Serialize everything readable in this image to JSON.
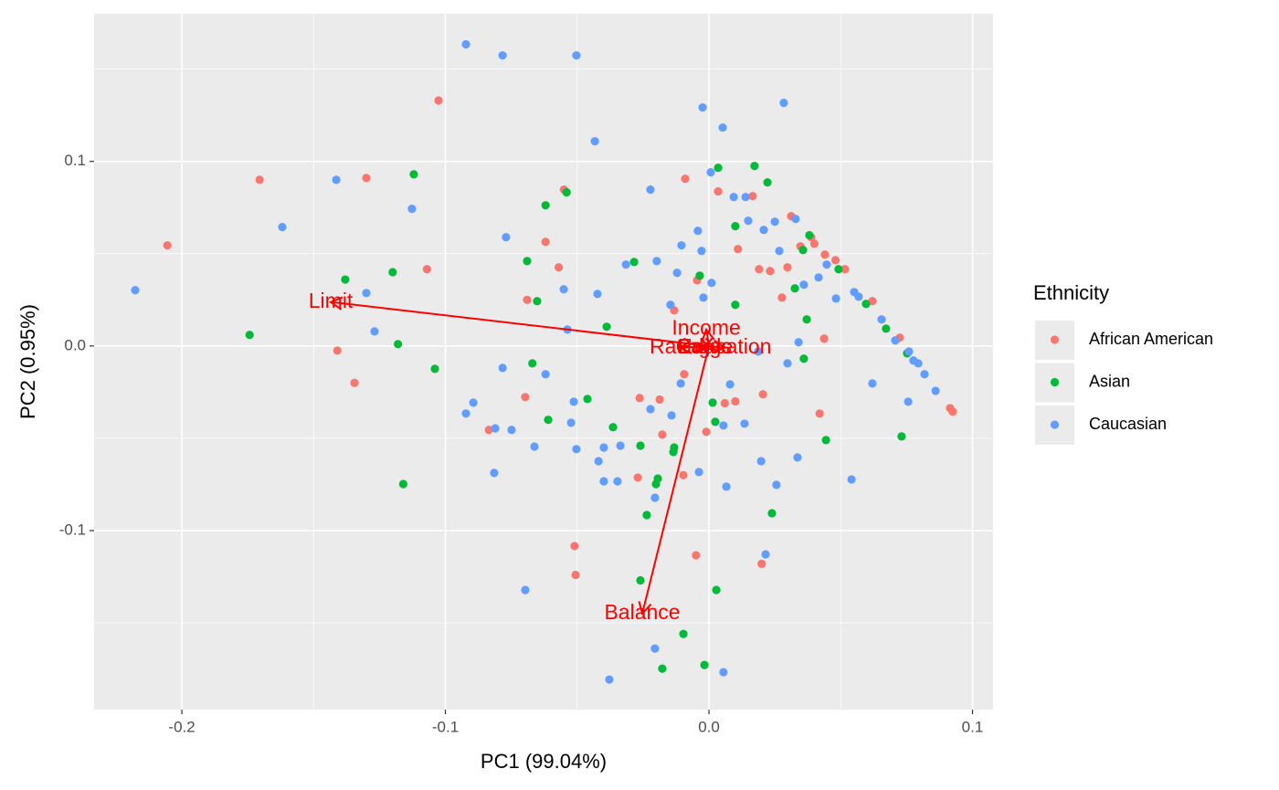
{
  "chart_data": {
    "type": "scatter",
    "x_label": "PC1 (99.04%)",
    "y_label": "PC2 (0.95%)",
    "legend_title": "Ethnicity",
    "xlim": [
      -0.2333,
      0.1078
    ],
    "ylim": [
      -0.197,
      0.18
    ],
    "xticks": [
      -0.2,
      -0.1,
      {
        "value": 0,
        "label": "0.0"
      },
      0.1
    ],
    "yticks": [
      -0.1,
      {
        "value": 0,
        "label": "0.0"
      },
      0.1
    ],
    "xminor": [
      -0.15,
      -0.05,
      0.05
    ],
    "yminor": [
      -0.15,
      -0.05,
      0.05,
      0.15
    ],
    "grid": true,
    "legend": "right",
    "series": [
      {
        "name": "African American",
        "color": "#F8766D",
        "x": [
          -0.2055,
          -0.1705,
          -0.13,
          -0.107,
          -0.1026,
          -0.141,
          -0.1345,
          -0.0835,
          -0.055,
          -0.062,
          -0.057,
          -0.069,
          -0.0697,
          -0.051,
          -0.0506,
          -0.0263,
          -0.009,
          0.0035,
          0.0166,
          0.011,
          0.019,
          0.0232,
          0.0298,
          0.0312,
          0.0347,
          0.0388,
          0.04,
          0.044,
          0.0277,
          0.0437,
          0.042,
          0.0205,
          0.01,
          0.006,
          -0.001,
          -0.0049,
          0.02,
          -0.0097,
          -0.0177,
          -0.027,
          -0.0187,
          -0.0094,
          -0.0132,
          -0.0045,
          0.0915,
          0.0925,
          0.048,
          0.0516,
          0.062,
          0.0724
        ],
        "values": [
          0.0545,
          0.09,
          0.091,
          0.0416,
          0.133,
          -0.0025,
          -0.02,
          -0.0455,
          0.0847,
          0.0564,
          0.0426,
          0.025,
          -0.0277,
          -0.1084,
          -0.124,
          -0.0282,
          0.0906,
          0.0837,
          0.0812,
          0.0525,
          0.0416,
          0.0406,
          0.0426,
          0.0703,
          0.054,
          0.0589,
          0.0554,
          0.0495,
          0.0262,
          0.004,
          -0.0366,
          -0.0262,
          -0.03,
          -0.031,
          -0.0465,
          -0.1134,
          -0.118,
          -0.07,
          -0.048,
          -0.0713,
          -0.029,
          -0.0153,
          0.0193,
          0.0356,
          -0.0337,
          -0.0356,
          0.0465,
          0.0416,
          0.0243,
          0.0045
        ]
      },
      {
        "name": "Asian",
        "color": "#00BA38",
        "x": [
          -0.1743,
          -0.138,
          -0.12,
          -0.112,
          -0.118,
          -0.104,
          -0.116,
          -0.069,
          -0.0652,
          -0.062,
          -0.054,
          -0.067,
          -0.061,
          -0.0461,
          -0.0284,
          -0.0388,
          -0.0364,
          -0.026,
          -0.026,
          -0.0236,
          -0.0194,
          -0.0135,
          -0.0097,
          -0.0177,
          -0.0017,
          0.0028,
          0.0035,
          0.0173,
          0.0222,
          0.01,
          0.01,
          0.0014,
          0.0024,
          0.0239,
          0.0326,
          0.0371,
          0.036,
          0.0357,
          0.0381,
          0.0444,
          0.0731,
          0.0492,
          0.0596,
          0.0672,
          0.0752,
          -0.0035,
          -0.0132,
          -0.0201
        ],
        "values": [
          0.006,
          0.036,
          0.04,
          0.093,
          0.001,
          -0.0124,
          -0.0748,
          0.046,
          0.0243,
          0.0762,
          0.0832,
          -0.0094,
          -0.04,
          -0.0287,
          0.0455,
          0.0104,
          -0.044,
          -0.054,
          -0.127,
          -0.0916,
          -0.0718,
          -0.0574,
          -0.156,
          -0.1748,
          -0.1728,
          -0.1322,
          0.0965,
          0.0975,
          0.0886,
          0.0649,
          0.0223,
          -0.0307,
          -0.0411,
          -0.0906,
          0.0312,
          0.0144,
          -0.0069,
          0.052,
          0.06,
          -0.051,
          -0.049,
          0.0416,
          0.0228,
          0.0094,
          -0.004,
          0.0381,
          -0.055,
          -0.0748
        ]
      },
      {
        "name": "Caucasian",
        "color": "#619CFF",
        "x": [
          -0.2177,
          -0.1619,
          -0.1414,
          -0.13,
          -0.1269,
          -0.1127,
          -0.0922,
          -0.0783,
          -0.0503,
          -0.0433,
          -0.077,
          -0.0922,
          -0.0894,
          -0.0811,
          -0.0815,
          -0.0783,
          -0.0749,
          -0.0662,
          -0.0697,
          -0.062,
          -0.0551,
          -0.0537,
          -0.0513,
          -0.0523,
          -0.0503,
          -0.0423,
          -0.0419,
          -0.0399,
          -0.0399,
          -0.0378,
          -0.0347,
          -0.0336,
          -0.0315,
          -0.0222,
          -0.0205,
          -0.0205,
          -0.0198,
          -0.0146,
          -0.0121,
          -0.0104,
          -0.0042,
          -0.0028,
          -0.0024,
          0.0007,
          0.0052,
          -0.0021,
          0.001,
          0.0094,
          0.0139,
          0.0149,
          0.0208,
          0.025,
          0.0329,
          0.0284,
          0.0267,
          0.0055,
          0.008,
          0.0135,
          0.0198,
          0.0256,
          0.0215,
          0.0336,
          0.0055,
          0.0066,
          -0.0038,
          -0.0142,
          -0.0222,
          -0.0107,
          0.0187,
          0.0298,
          0.034,
          0.036,
          0.0416,
          0.0482,
          0.062,
          0.0756,
          0.0541,
          0.086,
          0.0447,
          0.0551,
          0.0655,
          0.0759,
          0.0794,
          0.0818,
          0.0568,
          0.0707,
          0.0776
        ],
        "values": [
          0.0302,
          0.0644,
          0.09,
          0.0287,
          0.0079,
          0.0743,
          0.1634,
          0.1574,
          0.1574,
          0.1109,
          0.0589,
          -0.0366,
          -0.0307,
          -0.0446,
          -0.0688,
          -0.0119,
          -0.0455,
          -0.0545,
          -0.1322,
          -0.0153,
          0.0307,
          0.0089,
          -0.0302,
          -0.0416,
          -0.0559,
          0.0282,
          -0.0624,
          -0.0733,
          -0.055,
          -0.1807,
          -0.0733,
          -0.054,
          0.0441,
          0.0847,
          -0.0822,
          -0.1639,
          0.046,
          0.0223,
          0.0396,
          0.0545,
          0.0624,
          0.0515,
          0.1292,
          0.0941,
          0.1183,
          0.0262,
          0.0342,
          0.0807,
          0.0807,
          0.0678,
          0.0629,
          0.0673,
          0.0688,
          0.1317,
          0.0515,
          -0.0431,
          -0.0208,
          -0.0421,
          -0.0624,
          -0.0752,
          -0.1129,
          -0.0604,
          -0.1767,
          -0.0762,
          -0.0683,
          -0.0376,
          -0.0342,
          -0.0203,
          -0.003,
          -0.0094,
          0.002,
          0.0332,
          0.0371,
          0.0257,
          -0.0203,
          -0.0302,
          -0.0723,
          -0.0243,
          0.0441,
          0.0292,
          0.0144,
          -0.003,
          -0.0094,
          -0.0153,
          0.0267,
          0.003,
          -0.0079
        ]
      }
    ],
    "loadings_color": "#FF0000",
    "loadings": [
      {
        "name": "Limit",
        "x": -0.1435,
        "y": 0.0238
      },
      {
        "name": "Balance",
        "x": -0.0253,
        "y": -0.145
      },
      {
        "name": "Income",
        "x": -0.001,
        "y": 0.009
      },
      {
        "name": "Rating",
        "x": -0.011,
        "y": -0.001
      },
      {
        "name": "Cards",
        "x": -0.002,
        "y": -0.001
      },
      {
        "name": "Age",
        "x": 0.002,
        "y": -0.001
      },
      {
        "name": "Education",
        "x": 0.006,
        "y": -0.001
      }
    ]
  }
}
